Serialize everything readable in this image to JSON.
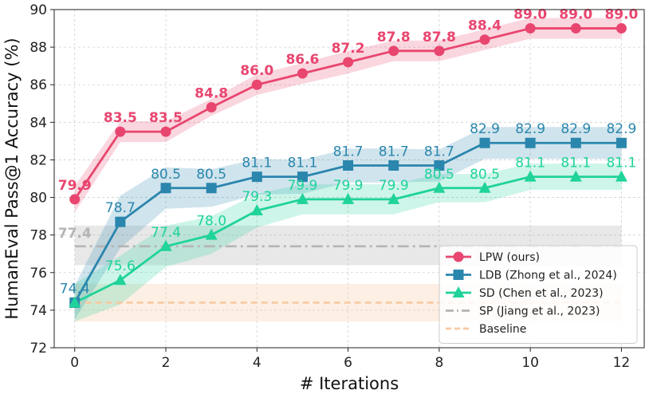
{
  "chart_data": {
    "type": "line",
    "title": "",
    "xlabel": "# Iterations",
    "ylabel": "HumanEval Pass@1 Accuracy (%)",
    "xlim": [
      -0.45,
      12.5
    ],
    "ylim": [
      72,
      90
    ],
    "xticks": [
      0,
      2,
      4,
      6,
      8,
      10,
      12
    ],
    "yticks": [
      72,
      74,
      76,
      78,
      80,
      82,
      84,
      86,
      88,
      90
    ],
    "grid": true,
    "legend_position": "bottom-right",
    "x": [
      0,
      1,
      2,
      3,
      4,
      5,
      6,
      7,
      8,
      9,
      10,
      11,
      12
    ],
    "series": [
      {
        "name": "LPW (ours)",
        "color": "#e8466f",
        "marker": "circle",
        "line_style": "solid",
        "values": [
          79.9,
          83.5,
          83.5,
          84.8,
          86.0,
          86.6,
          87.2,
          87.8,
          87.8,
          88.4,
          89.0,
          89.0,
          89.0
        ],
        "band": [
          0.7,
          0.55,
          0.55,
          0.45,
          0.55,
          0.55,
          0.6,
          0.55,
          0.55,
          0.55,
          0.55,
          0.55,
          0.55
        ],
        "labels": [
          "79.9",
          "83.5",
          "83.5",
          "84.8",
          "86.0",
          "86.6",
          "87.2",
          "87.8",
          "87.8",
          "88.4",
          "89.0",
          "89.0",
          "89.0"
        ],
        "label_bold": true
      },
      {
        "name": "LDB (Zhong et al., 2024)",
        "color": "#2a86ad",
        "marker": "square",
        "line_style": "solid",
        "values": [
          74.4,
          78.7,
          80.5,
          80.5,
          81.1,
          81.1,
          81.7,
          81.7,
          81.7,
          82.9,
          82.9,
          82.9,
          82.9
        ],
        "band": [
          0.9,
          1.4,
          1.1,
          1.0,
          0.95,
          0.9,
          0.9,
          0.9,
          0.85,
          0.85,
          0.85,
          0.85,
          0.85
        ],
        "labels": [
          "74.4",
          "78.7",
          "80.5",
          "80.5",
          "81.1",
          "81.1",
          "81.7",
          "81.7",
          "81.7",
          "82.9",
          "82.9",
          "82.9",
          "82.9"
        ],
        "label_bold": false
      },
      {
        "name": "SD (Chen et al., 2023)",
        "color": "#1fd39a",
        "marker": "triangle",
        "line_style": "solid",
        "values": [
          74.4,
          75.6,
          77.4,
          78.0,
          79.3,
          79.9,
          79.9,
          79.9,
          80.5,
          80.5,
          81.1,
          81.1,
          81.1
        ],
        "band": [
          1.0,
          1.3,
          1.1,
          1.0,
          0.9,
          0.8,
          0.8,
          0.8,
          0.75,
          0.75,
          0.7,
          0.7,
          0.7
        ],
        "labels": [
          "",
          "75.6",
          "77.4",
          "78.0",
          "79.3",
          "79.9",
          "79.9",
          "79.9",
          "80.5",
          "80.5",
          "81.1",
          "81.1",
          "81.1"
        ],
        "label_bold": false
      },
      {
        "name": "SP (Jiang et al., 2023)",
        "color": "#b4b4b4",
        "marker": "none",
        "line_style": "dashdot",
        "constant": 77.4,
        "band": [
          76.4,
          78.5
        ],
        "label": "77.4",
        "label_bold": true
      },
      {
        "name": "Baseline",
        "color": "#f7c9a3",
        "marker": "none",
        "line_style": "dashed",
        "constant": 74.4,
        "band": [
          73.4,
          75.4
        ],
        "label": "",
        "label_bold": false
      }
    ]
  }
}
